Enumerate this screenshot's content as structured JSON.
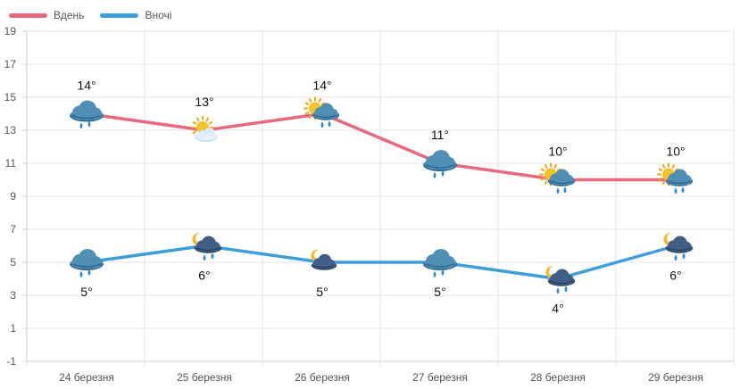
{
  "legend": [
    {
      "name": "Вдень",
      "color": "#e8697f"
    },
    {
      "name": "Вночі",
      "color": "#3d9fd9"
    }
  ],
  "chart_data": {
    "type": "line",
    "title": "",
    "xlabel": "",
    "ylabel": "",
    "categories": [
      "24 березня",
      "25 березня",
      "26 березня",
      "27 березня",
      "28 березня",
      "29 березня"
    ],
    "y_ticks": [
      19,
      17,
      15,
      13,
      11,
      9,
      7,
      5,
      3,
      1,
      -1
    ],
    "ylim": [
      -1,
      19
    ],
    "grid": true,
    "legend_position": "top-left",
    "series": [
      {
        "name": "Вдень",
        "color": "#e8697f",
        "values": [
          14,
          13,
          14,
          11,
          10,
          10
        ],
        "labels": [
          "14°",
          "13°",
          "14°",
          "11°",
          "10°",
          "10°"
        ],
        "icons": [
          "cloud-rain-icon",
          "sun-cloud-icon",
          "sun-cloud-rain-icon",
          "cloud-rain-icon",
          "sun-cloud-rain-icon",
          "sun-cloud-rain-icon"
        ]
      },
      {
        "name": "Вночі",
        "color": "#3d9fd9",
        "values": [
          5,
          6,
          5,
          5,
          4,
          6
        ],
        "labels": [
          "5°",
          "6°",
          "5°",
          "5°",
          "4°",
          "6°"
        ],
        "icons": [
          "cloud-rain-icon",
          "moon-cloud-rain-icon",
          "moon-cloud-icon",
          "cloud-rain-icon",
          "moon-cloud-rain-icon",
          "moon-cloud-rain-icon"
        ]
      }
    ]
  }
}
